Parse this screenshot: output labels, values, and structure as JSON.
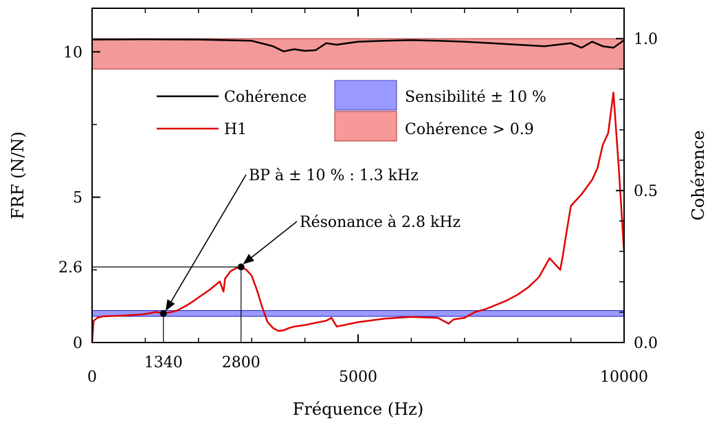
{
  "chart_data": {
    "type": "line",
    "xlabel": "Fréquence (Hz)",
    "ylabel": "FRF (N/N)",
    "ylabel_right": "Cohérence",
    "xlim": [
      0,
      10000
    ],
    "ylim": [
      0,
      11.5
    ],
    "ylim_right": [
      0,
      1.1
    ],
    "x_ticks": [
      0,
      1340,
      2800,
      5000,
      10000
    ],
    "x_tick_labels": [
      "0",
      "1340",
      "2800",
      "5000",
      "10000"
    ],
    "y_ticks": [
      0,
      2.6,
      5,
      10
    ],
    "y_tick_labels": [
      "0",
      "2.6",
      "5",
      "10"
    ],
    "y_right_ticks": [
      0.0,
      0.5,
      1.0
    ],
    "y_right_tick_labels": [
      "0.0",
      "0.5",
      "1.0"
    ],
    "bands": [
      {
        "name": "Sensibilité ± 10 %",
        "axis": "left",
        "y_from": 0.9,
        "y_to": 1.1,
        "color": "#8080ff",
        "edge": "#2020c0"
      },
      {
        "name": "Cohérence > 0.9",
        "axis": "right",
        "y_from": 0.9,
        "y_to": 1.0,
        "color": "#f08080",
        "edge": "#b03030"
      }
    ],
    "series": [
      {
        "name": "H1",
        "axis": "left",
        "color": "#e00000",
        "x": [
          0,
          30,
          100,
          200,
          500,
          800,
          1000,
          1200,
          1340,
          1500,
          1600,
          1700,
          1800,
          1900,
          2000,
          2200,
          2400,
          2470,
          2500,
          2600,
          2700,
          2800,
          2900,
          3000,
          3100,
          3200,
          3300,
          3400,
          3500,
          3600,
          3700,
          3800,
          4000,
          4200,
          4400,
          4500,
          4600,
          5000,
          5500,
          6000,
          6500,
          6700,
          6800,
          7000,
          7200,
          7400,
          7600,
          7800,
          8000,
          8200,
          8400,
          8600,
          8800,
          8850,
          8900,
          9000,
          9200,
          9400,
          9500,
          9600,
          9700,
          9800,
          9900,
          10000
        ],
        "y": [
          0,
          0.75,
          0.85,
          0.9,
          0.92,
          0.95,
          0.98,
          1.05,
          1.0,
          1.05,
          1.1,
          1.2,
          1.3,
          1.42,
          1.55,
          1.8,
          2.1,
          1.75,
          2.2,
          2.45,
          2.55,
          2.6,
          2.5,
          2.3,
          1.8,
          1.2,
          0.7,
          0.5,
          0.4,
          0.42,
          0.5,
          0.55,
          0.6,
          0.68,
          0.75,
          0.85,
          0.55,
          0.7,
          0.82,
          0.88,
          0.85,
          0.65,
          0.8,
          0.85,
          1.05,
          1.15,
          1.3,
          1.45,
          1.65,
          1.9,
          2.25,
          2.9,
          2.5,
          3.0,
          3.6,
          4.7,
          5.1,
          5.6,
          6.0,
          6.8,
          7.2,
          8.6,
          6.0,
          3.1
        ]
      },
      {
        "name": "Cohérence",
        "axis": "right",
        "color": "#000000",
        "x": [
          0,
          1000,
          2000,
          3000,
          3400,
          3600,
          3800,
          4000,
          4200,
          4400,
          4600,
          4800,
          5000,
          5500,
          6000,
          6500,
          7000,
          7500,
          8000,
          8500,
          9000,
          9200,
          9400,
          9600,
          9800,
          10000
        ],
        "y": [
          0.997,
          0.998,
          0.997,
          0.993,
          0.975,
          0.958,
          0.965,
          0.96,
          0.962,
          0.985,
          0.98,
          0.985,
          0.99,
          0.993,
          0.995,
          0.993,
          0.99,
          0.985,
          0.98,
          0.975,
          0.985,
          0.97,
          0.99,
          0.975,
          0.97,
          0.995
        ]
      }
    ],
    "annotations": [
      {
        "text": "BP à ± 10 % : 1.3 kHz",
        "x": 1340,
        "y": 1.0
      },
      {
        "text": "Résonance à 2.8 kHz",
        "x": 2800,
        "y": 2.6
      }
    ],
    "legend_position": "top-center"
  }
}
